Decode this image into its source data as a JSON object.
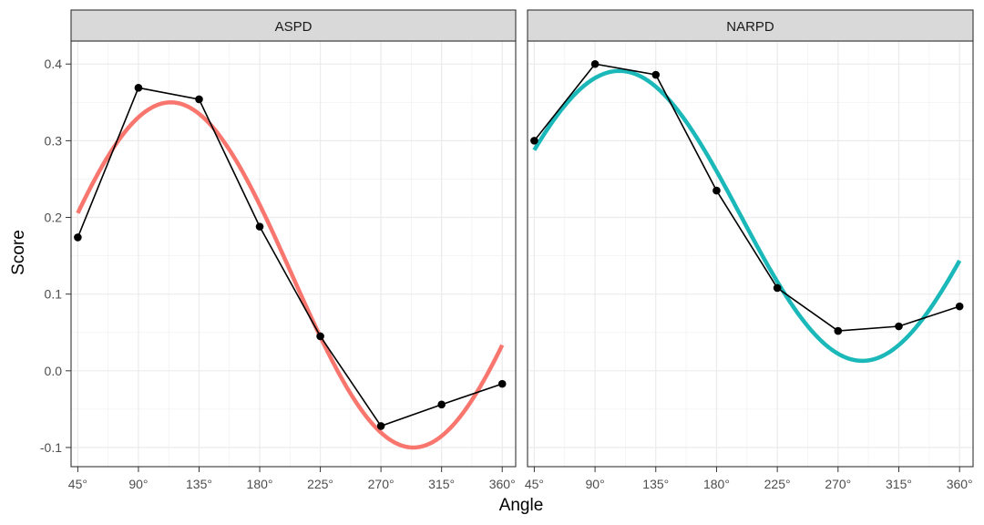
{
  "chart_data": {
    "type": "line",
    "xlabel": "Angle",
    "ylabel": "Score",
    "x_ticks": [
      "45°",
      "90°",
      "135°",
      "180°",
      "225°",
      "270°",
      "315°",
      "360°"
    ],
    "x_values": [
      45,
      90,
      135,
      180,
      225,
      270,
      315,
      360
    ],
    "y_ticks": [
      "0.4",
      "0.3",
      "0.2",
      "0.1",
      "0.0",
      "-0.1"
    ],
    "xlim": [
      40,
      370
    ],
    "ylim": [
      -0.125,
      0.43
    ],
    "grid": true,
    "panels": [
      {
        "strip": "ASPD",
        "color": "#F8766D",
        "points": [
          0.174,
          0.369,
          0.354,
          0.188,
          0.045,
          -0.072,
          -0.044,
          -0.017
        ],
        "fit": {
          "elevation": 0.125,
          "amplitude": 0.225,
          "peak_angle": 114
        }
      },
      {
        "strip": "NARPD",
        "color": "#1BB8BA",
        "points": [
          0.3,
          0.4,
          0.386,
          0.235,
          0.108,
          0.052,
          0.058,
          0.084
        ],
        "fit": {
          "elevation": 0.202,
          "amplitude": 0.189,
          "peak_angle": 108
        }
      }
    ]
  }
}
